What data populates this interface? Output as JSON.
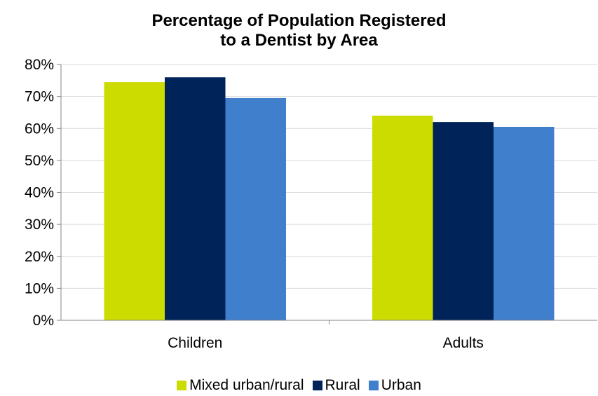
{
  "chart_data": {
    "type": "bar",
    "title_lines": [
      "Percentage of Population Registered",
      "to a Dentist by Area"
    ],
    "categories": [
      "Children",
      "Adults"
    ],
    "series": [
      {
        "name": "Mixed urban/rural",
        "color": "#cddc00",
        "values": [
          74.5,
          64.0
        ]
      },
      {
        "name": "Rural",
        "color": "#00235a",
        "values": [
          76.0,
          62.0
        ]
      },
      {
        "name": "Urban",
        "color": "#3f7fcc",
        "values": [
          69.5,
          60.5
        ]
      }
    ],
    "y_ticks": [
      "0%",
      "10%",
      "20%",
      "30%",
      "40%",
      "50%",
      "60%",
      "70%",
      "80%"
    ],
    "ylim": [
      0,
      80
    ],
    "grid": true,
    "legend_position": "bottom"
  }
}
